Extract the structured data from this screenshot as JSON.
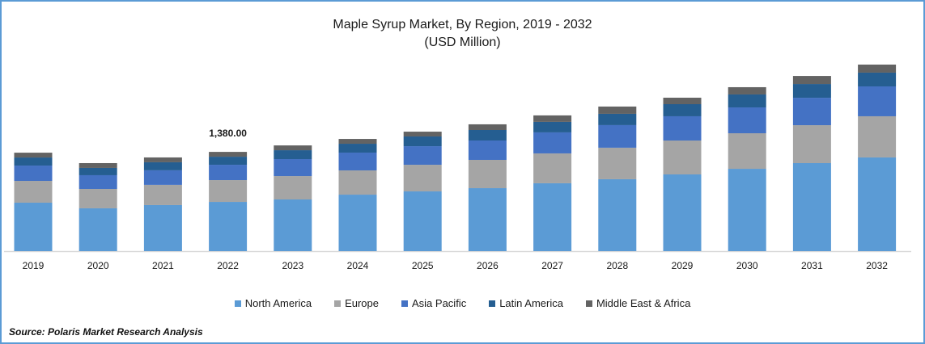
{
  "chart_data": {
    "type": "bar",
    "stacked": true,
    "title": "Maple Syrup Market, By Region, 2019 - 2032",
    "subtitle": "(USD Million)",
    "categories": [
      "2019",
      "2020",
      "2021",
      "2022",
      "2023",
      "2024",
      "2025",
      "2026",
      "2027",
      "2028",
      "2029",
      "2030",
      "2031",
      "2032"
    ],
    "series": [
      {
        "name": "North America",
        "color": "#5b9bd5",
        "values": [
          673,
          595,
          640,
          684,
          718,
          785,
          830,
          875,
          943,
          999,
          1066,
          1144,
          1223,
          1302
        ]
      },
      {
        "name": "Europe",
        "color": "#a5a5a5",
        "values": [
          303,
          269,
          281,
          303,
          325,
          337,
          370,
          393,
          415,
          438,
          471,
          494,
          527,
          572
        ]
      },
      {
        "name": "Asia Pacific",
        "color": "#4472c4",
        "values": [
          213,
          191,
          202,
          213,
          236,
          247,
          258,
          269,
          292,
          314,
          337,
          359,
          381,
          415
        ]
      },
      {
        "name": "Latin America",
        "color": "#255e91",
        "values": [
          112,
          101,
          112,
          112,
          123,
          123,
          135,
          146,
          146,
          157,
          168,
          180,
          191,
          191
        ]
      },
      {
        "name": "Middle East & Africa",
        "color": "#636363",
        "values": [
          67,
          67,
          67,
          67,
          67,
          67,
          67,
          79,
          90,
          101,
          90,
          101,
          112,
          112
        ]
      }
    ],
    "annotations": [
      {
        "category": "2022",
        "text": "1,380.00"
      }
    ],
    "ylim": [
      0,
      2800
    ],
    "grid": false,
    "y_axis_visible": false,
    "legend_position": "bottom"
  },
  "source": "Source: Polaris  Market Research Analysis"
}
